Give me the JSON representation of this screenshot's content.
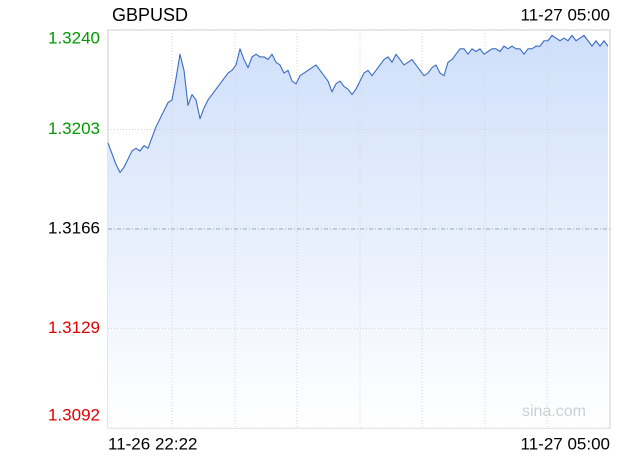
{
  "chart_data": {
    "type": "line",
    "title": "GBPUSD",
    "top_time": "11-27 05:00",
    "x_labels": [
      "11-26 22:22",
      "11-27 05:00"
    ],
    "watermark": "sina.com",
    "color": "#3a6cc2",
    "fill_color": "#cfdffa",
    "grid": true,
    "ylim": [
      1.3092,
      1.324
    ],
    "yticks": [
      {
        "value": 1.3092,
        "label": "1.3092"
      },
      {
        "value": 1.3129,
        "label": "1.3129"
      },
      {
        "value": 1.3166,
        "label": "1.3166"
      },
      {
        "value": 1.3203,
        "label": "1.3203"
      },
      {
        "value": 1.324,
        "label": "1.3240"
      }
    ],
    "ytick_colors": [
      "#e00000",
      "#e00000",
      "#000000",
      "#009900",
      "#009900"
    ],
    "values": [
      1.3198,
      1.3194,
      1.319,
      1.3187,
      1.3189,
      1.3192,
      1.3195,
      1.3196,
      1.3195,
      1.3197,
      1.3196,
      1.32,
      1.3204,
      1.3207,
      1.321,
      1.3213,
      1.3214,
      1.3222,
      1.3231,
      1.3225,
      1.3212,
      1.3216,
      1.3214,
      1.3207,
      1.3211,
      1.3214,
      1.3216,
      1.3218,
      1.322,
      1.3222,
      1.3224,
      1.3225,
      1.3227,
      1.3233,
      1.3229,
      1.3226,
      1.323,
      1.3231,
      1.323,
      1.323,
      1.3229,
      1.3231,
      1.3228,
      1.3227,
      1.3224,
      1.3225,
      1.3221,
      1.322,
      1.3223,
      1.3224,
      1.3225,
      1.3226,
      1.3227,
      1.3225,
      1.3223,
      1.3221,
      1.3217,
      1.322,
      1.3221,
      1.3219,
      1.3218,
      1.3216,
      1.3218,
      1.3221,
      1.3224,
      1.3225,
      1.3223,
      1.3225,
      1.3227,
      1.3229,
      1.323,
      1.3228,
      1.3231,
      1.3229,
      1.3227,
      1.3228,
      1.3229,
      1.3227,
      1.3225,
      1.3223,
      1.3224,
      1.3226,
      1.3227,
      1.3224,
      1.3223,
      1.3228,
      1.3229,
      1.3231,
      1.3233,
      1.3233,
      1.3231,
      1.3233,
      1.3232,
      1.3233,
      1.3231,
      1.3232,
      1.3233,
      1.3233,
      1.3232,
      1.3234,
      1.3233,
      1.3234,
      1.3233,
      1.3233,
      1.3231,
      1.3233,
      1.3233,
      1.3234,
      1.3234,
      1.3236,
      1.3236,
      1.3238,
      1.3237,
      1.3236,
      1.3237,
      1.3236,
      1.3238,
      1.3236,
      1.3237,
      1.3238,
      1.3236,
      1.3234,
      1.3236,
      1.3234,
      1.3236,
      1.3234
    ]
  }
}
